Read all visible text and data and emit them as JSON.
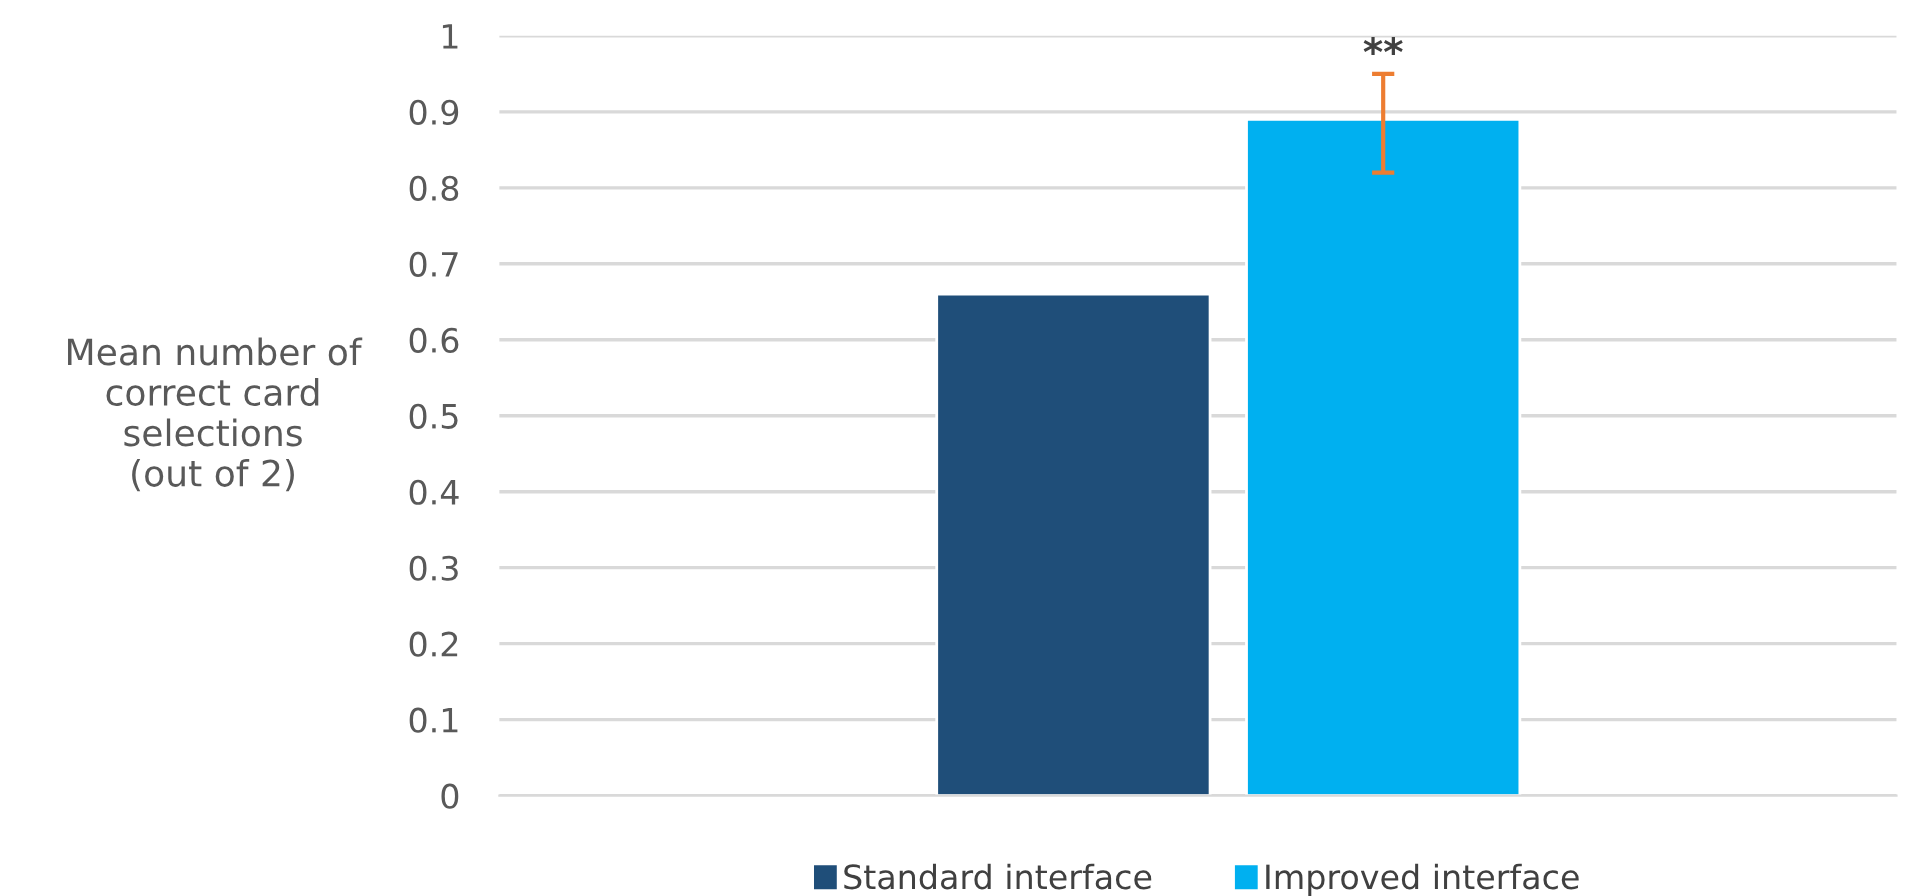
{
  "chart_data": {
    "type": "bar",
    "ylabel": "Mean number of\ncorrect card\nselections\n(out of 2)",
    "categories": [
      null
    ],
    "series": [
      {
        "name": "Standard interface",
        "color": "#1f4e79",
        "values": [
          0.66
        ]
      },
      {
        "name": "Improved interface",
        "color": "#00b0f0",
        "values": [
          0.89
        ],
        "errors": [
          [
            0.82,
            0.95
          ]
        ]
      }
    ],
    "annotations": [
      {
        "text": "**",
        "y": 0.95
      }
    ],
    "ylim": [
      0,
      1
    ],
    "yticks": [
      0,
      {
        "value": 0.1,
        "label": "0.1"
      },
      {
        "value": 0.2,
        "label": "0.2"
      },
      {
        "value": 0.3,
        "label": "0.3"
      },
      {
        "value": 0.4,
        "label": "0.4"
      },
      {
        "value": 0.5,
        "label": "0.5"
      },
      {
        "value": 0.6,
        "label": "0.6"
      },
      {
        "value": 0.7,
        "label": "0.7"
      },
      {
        "value": 0.8,
        "label": "0.8"
      },
      {
        "value": 0.9,
        "label": "0.9"
      },
      1
    ],
    "grid": "y",
    "legend": "bottom"
  }
}
